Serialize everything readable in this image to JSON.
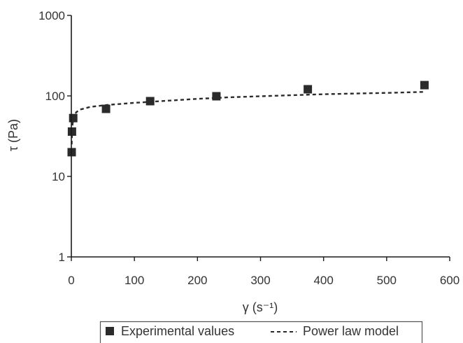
{
  "chart_data": {
    "type": "scatter",
    "title": "",
    "xlabel": "γ (s⁻¹)",
    "ylabel": "τ (Pa)",
    "x_scale": "linear",
    "y_scale": "log",
    "xlim": [
      0,
      600
    ],
    "ylim": [
      1,
      1000
    ],
    "x_ticks": [
      "0",
      "100",
      "200",
      "300",
      "400",
      "500",
      "600"
    ],
    "y_ticks": [
      "1",
      "10",
      "100",
      "1000"
    ],
    "grid": false,
    "legend_position": "bottom",
    "series": [
      {
        "name": "Experimental values",
        "kind": "markers",
        "marker": "square",
        "color": "#2b2b2b",
        "points": [
          {
            "x": 0.5,
            "y": 20
          },
          {
            "x": 1,
            "y": 36
          },
          {
            "x": 3,
            "y": 53
          },
          {
            "x": 55,
            "y": 69
          },
          {
            "x": 125,
            "y": 86
          },
          {
            "x": 230,
            "y": 99
          },
          {
            "x": 375,
            "y": 121
          },
          {
            "x": 560,
            "y": 136
          }
        ]
      },
      {
        "name": "Power law model",
        "kind": "line",
        "dash": "dashed",
        "color": "#2b2b2b",
        "points": [
          {
            "x": 0.6,
            "y": 25
          },
          {
            "x": 1,
            "y": 32
          },
          {
            "x": 2,
            "y": 45
          },
          {
            "x": 4,
            "y": 56
          },
          {
            "x": 8,
            "y": 63
          },
          {
            "x": 15,
            "y": 68
          },
          {
            "x": 30,
            "y": 73
          },
          {
            "x": 55,
            "y": 77
          },
          {
            "x": 100,
            "y": 82
          },
          {
            "x": 150,
            "y": 87
          },
          {
            "x": 200,
            "y": 92
          },
          {
            "x": 250,
            "y": 96
          },
          {
            "x": 300,
            "y": 99
          },
          {
            "x": 350,
            "y": 102
          },
          {
            "x": 400,
            "y": 105
          },
          {
            "x": 450,
            "y": 107
          },
          {
            "x": 500,
            "y": 109
          },
          {
            "x": 560,
            "y": 112
          }
        ]
      }
    ]
  }
}
